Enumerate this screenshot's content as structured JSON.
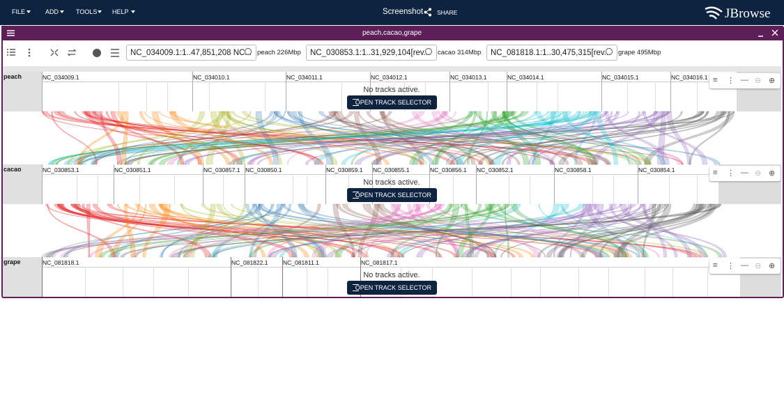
{
  "menu": [
    "FILE",
    "ADD",
    "TOOLS",
    "HELP"
  ],
  "header": {
    "title": "Screenshot",
    "share": "SHARE",
    "logo": "JBrowse"
  },
  "view": {
    "title": "peach,cacao,grape",
    "rows": [
      {
        "location": "NC_034009.1:1..47,851,208 NC...",
        "assembly_label": "peach 226Mbp",
        "track_label": "peach",
        "regions": [
          "NC_034009.1",
          "NC_034010.1",
          "NC_034011.1",
          "NC_034012.1",
          "NC_034013.1",
          "NC_034014.1",
          "NC_034015.1",
          "NC_034016.1"
        ],
        "status": "No tracks active.",
        "button": "OPEN TRACK SELECTOR"
      },
      {
        "location": "NC_030853.1:1..31,929,104[rev...",
        "assembly_label": "cacao 314Mbp",
        "track_label": "cacao",
        "regions": [
          "NC_030853.1",
          "NC_030851.1",
          "NC_030857.1",
          "NC_030850.1",
          "NC_030859.1",
          "NC_030855.1",
          "NC_030856.1",
          "NC_030852.1",
          "NC_030858.1",
          "NC_030854.1"
        ],
        "status": "No tracks active.",
        "button": "OPEN TRACK SELECTOR"
      },
      {
        "location": "NC_081818.1:1..30,475,315[rev...",
        "assembly_label": "grape 495Mbp",
        "track_label": "grape",
        "regions": [
          "NC_081818.1",
          "NC_081822.1",
          "NC_081811.1",
          "NC_081817.1"
        ],
        "status": "No tracks active.",
        "button": "OPEN TRACK SELECTOR"
      }
    ]
  }
}
